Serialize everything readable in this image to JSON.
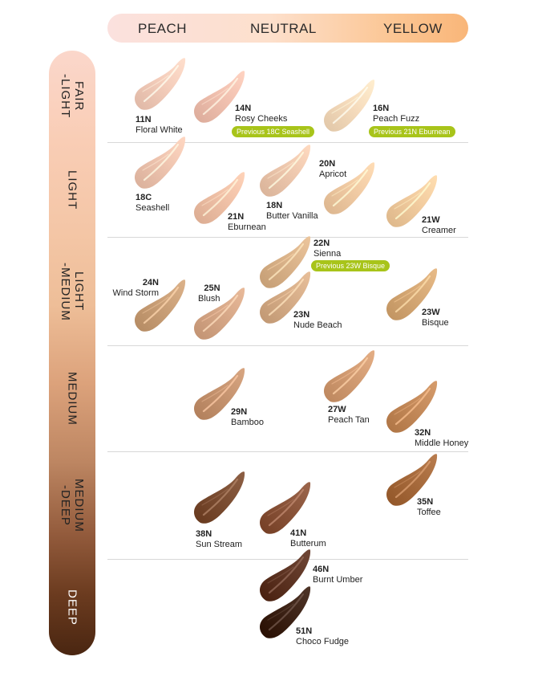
{
  "undertones": [
    "PEACH",
    "NEUTRAL",
    "YELLOW"
  ],
  "depths": [
    "FAIR\n-LIGHT",
    "LIGHT",
    "LIGHT\n-MEDIUM",
    "MEDIUM",
    "MEDIUM\n-DEEP",
    "DEEP"
  ],
  "shades": [
    {
      "code": "11N",
      "name": "Floral White",
      "color": "#f4cdbb"
    },
    {
      "code": "14N",
      "name": "Rosy Cheeks",
      "color": "#f1c1b0",
      "badge": "Previous 18C Seashell"
    },
    {
      "code": "16N",
      "name": "Peach Fuzz",
      "color": "#f6dcbd",
      "badge": "Previous 21N Eburnean"
    },
    {
      "code": "18C",
      "name": "Seashell",
      "color": "#efc5b0"
    },
    {
      "code": "21N",
      "name": "Eburnean",
      "color": "#f0c1a7"
    },
    {
      "code": "18N",
      "name": "Butter Vanilla",
      "color": "#eec8ae"
    },
    {
      "code": "20N",
      "name": "Apricot",
      "color": "#f1cba4"
    },
    {
      "code": "21W",
      "name": "Creamer",
      "color": "#f2cc9f"
    },
    {
      "code": "22N",
      "name": "Sienna",
      "color": "#dab38a",
      "badge": "Previous 23W Bisque"
    },
    {
      "code": "24N",
      "name": "Wind Storm",
      "color": "#caa078"
    },
    {
      "code": "25N",
      "name": "Blush",
      "color": "#d7a888"
    },
    {
      "code": "23N",
      "name": "Nude Beach",
      "color": "#d6ad88"
    },
    {
      "code": "23W",
      "name": "Bisque",
      "color": "#d6a976"
    },
    {
      "code": "29N",
      "name": "Bamboo",
      "color": "#c69470"
    },
    {
      "code": "27W",
      "name": "Peach Tan",
      "color": "#d29c73"
    },
    {
      "code": "32N",
      "name": "Middle Honey",
      "color": "#c48a5a"
    },
    {
      "code": "35N",
      "name": "Toffee",
      "color": "#a76b3d"
    },
    {
      "code": "38N",
      "name": "Sun Stream",
      "color": "#7c4e33"
    },
    {
      "code": "41N",
      "name": "Butterum",
      "color": "#8a543a"
    },
    {
      "code": "46N",
      "name": "Burnt Umber",
      "color": "#5e3524"
    },
    {
      "code": "51N",
      "name": "Choco Fudge",
      "color": "#3d2316"
    }
  ]
}
